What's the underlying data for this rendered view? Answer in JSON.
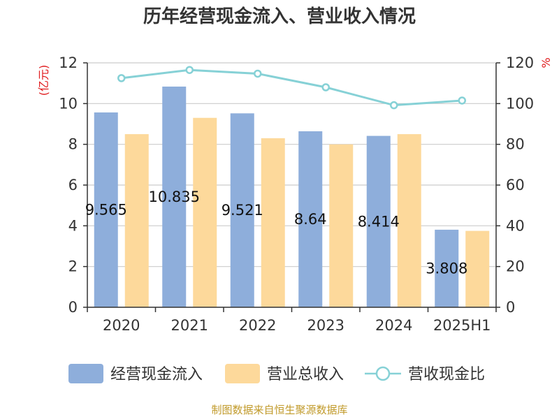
{
  "chart_data": {
    "type": "bar",
    "title": "历年经营现金流入、营业收入情况",
    "categories": [
      "2020",
      "2021",
      "2022",
      "2023",
      "2024",
      "2025H1"
    ],
    "series": [
      {
        "name": "经营现金流入",
        "type": "bar",
        "axis": "left",
        "color": "#8eaedb",
        "values": [
          9.565,
          10.835,
          9.521,
          8.64,
          8.414,
          3.808
        ],
        "labels": [
          "9.565",
          "10.835",
          "9.521",
          "8.64",
          "8.414",
          "3.808"
        ]
      },
      {
        "name": "营业总收入",
        "type": "bar",
        "axis": "left",
        "color": "#fdd99b",
        "values": [
          8.5,
          9.3,
          8.3,
          8.0,
          8.5,
          3.75
        ]
      },
      {
        "name": "营收现金比",
        "type": "line",
        "axis": "right",
        "color": "#86d1d6",
        "values": [
          112.5,
          116.5,
          114.7,
          108.0,
          99.2,
          101.5
        ]
      }
    ],
    "left_axis": {
      "unit": "(亿元)",
      "ylim": [
        0,
        12
      ],
      "ticks": [
        0,
        2,
        4,
        6,
        8,
        10,
        12
      ]
    },
    "right_axis": {
      "unit": "%",
      "ylim": [
        0,
        120
      ],
      "ticks": [
        0,
        20,
        40,
        60,
        80,
        100,
        120
      ]
    },
    "grid": true,
    "legend_position": "bottom"
  },
  "source": "制图数据来自恒生聚源数据库"
}
